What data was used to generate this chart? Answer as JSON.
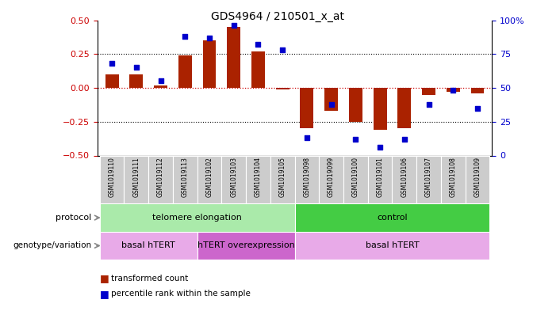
{
  "title": "GDS4964 / 210501_x_at",
  "samples": [
    "GSM1019110",
    "GSM1019111",
    "GSM1019112",
    "GSM1019113",
    "GSM1019102",
    "GSM1019103",
    "GSM1019104",
    "GSM1019105",
    "GSM1019098",
    "GSM1019099",
    "GSM1019100",
    "GSM1019101",
    "GSM1019106",
    "GSM1019107",
    "GSM1019108",
    "GSM1019109"
  ],
  "bar_values": [
    0.1,
    0.1,
    0.02,
    0.24,
    0.35,
    0.45,
    0.27,
    -0.01,
    -0.3,
    -0.17,
    -0.25,
    -0.31,
    -0.3,
    -0.05,
    -0.03,
    -0.04
  ],
  "dot_values_pct": [
    68,
    65,
    55,
    88,
    87,
    96,
    82,
    78,
    13,
    38,
    12,
    6,
    12,
    38,
    48,
    35
  ],
  "ylim": [
    -0.5,
    0.5
  ],
  "yticks_left": [
    -0.5,
    -0.25,
    0,
    0.25,
    0.5
  ],
  "yticks_right": [
    0,
    25,
    50,
    75,
    100
  ],
  "ytick_right_labels": [
    "0",
    "25",
    "50",
    "75",
    "100%"
  ],
  "bar_color": "#aa2200",
  "dot_color": "#0000cc",
  "zero_line_color": "#cc0000",
  "hline_color": "#000000",
  "protocol_labels": [
    {
      "text": "telomere elongation",
      "start": 0,
      "end": 7,
      "color": "#aaeaaa"
    },
    {
      "text": "control",
      "start": 8,
      "end": 15,
      "color": "#44cc44"
    }
  ],
  "genotype_labels": [
    {
      "text": "basal hTERT",
      "start": 0,
      "end": 3,
      "color": "#e8aae8"
    },
    {
      "text": "hTERT overexpression",
      "start": 4,
      "end": 7,
      "color": "#cc66cc"
    },
    {
      "text": "basal hTERT",
      "start": 8,
      "end": 15,
      "color": "#e8aae8"
    }
  ],
  "protocol_row_label": "protocol",
  "genotype_row_label": "genotype/variation",
  "legend_bar_label": "transformed count",
  "legend_dot_label": "percentile rank within the sample",
  "left_tick_color": "#cc0000",
  "right_tick_color": "#0000cc",
  "tick_bg": "#cccccc",
  "fig_bg": "#ffffff"
}
